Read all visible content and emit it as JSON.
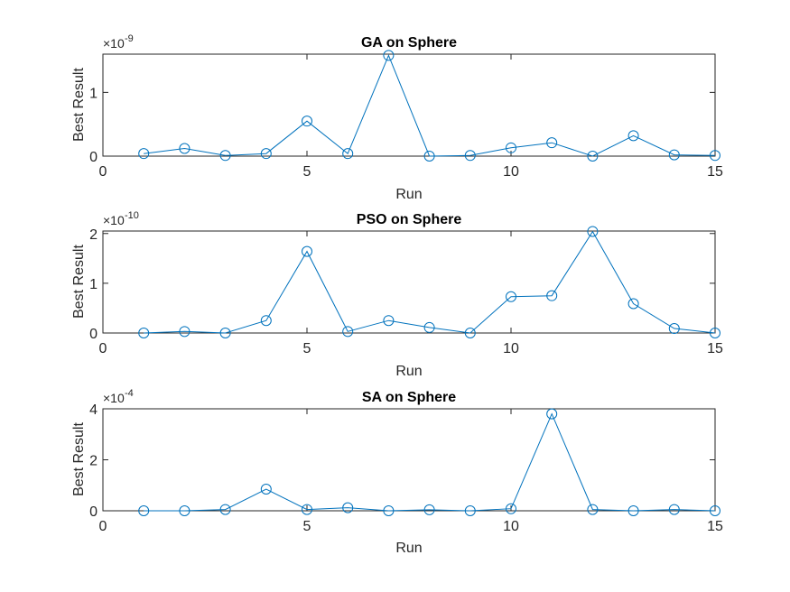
{
  "chart_data": [
    {
      "type": "line",
      "title": "GA on Sphere",
      "xlabel": "Run",
      "ylabel": "Best Result",
      "exponent": "-9",
      "xlim": [
        0,
        15
      ],
      "ylim": [
        0,
        1.6
      ],
      "xticks": [
        "0",
        "5",
        "10",
        "15"
      ],
      "yticks": [
        "0",
        "1"
      ],
      "yticks_values": [
        0,
        1
      ],
      "grid": false,
      "x": [
        1,
        2,
        3,
        4,
        5,
        6,
        7,
        8,
        9,
        10,
        11,
        12,
        13,
        14,
        15
      ],
      "values": [
        0.04,
        0.12,
        0.01,
        0.04,
        0.55,
        0.04,
        1.58,
        0.0,
        0.01,
        0.13,
        0.21,
        0.0,
        0.32,
        0.02,
        0.01
      ]
    },
    {
      "type": "line",
      "title": "PSO on Sphere",
      "xlabel": "Run",
      "ylabel": "Best Result",
      "exponent": "-10",
      "xlim": [
        0,
        15
      ],
      "ylim": [
        0,
        2.05
      ],
      "xticks": [
        "0",
        "5",
        "10",
        "15"
      ],
      "yticks": [
        "0",
        "1",
        "2"
      ],
      "yticks_values": [
        0,
        1,
        2
      ],
      "grid": false,
      "x": [
        1,
        2,
        3,
        4,
        5,
        6,
        7,
        8,
        9,
        10,
        11,
        12,
        13,
        14,
        15
      ],
      "values": [
        0.0,
        0.03,
        0.0,
        0.25,
        1.64,
        0.03,
        0.25,
        0.11,
        0.0,
        0.73,
        0.75,
        2.04,
        0.59,
        0.09,
        0.0
      ]
    },
    {
      "type": "line",
      "title": "SA on Sphere",
      "xlabel": "Run",
      "ylabel": "Best Result",
      "exponent": "-4",
      "xlim": [
        0,
        15
      ],
      "ylim": [
        0,
        4
      ],
      "xticks": [
        "0",
        "5",
        "10",
        "15"
      ],
      "yticks": [
        "0",
        "2",
        "4"
      ],
      "yticks_values": [
        0,
        2,
        4
      ],
      "grid": false,
      "x": [
        1,
        2,
        3,
        4,
        5,
        6,
        7,
        8,
        9,
        10,
        11,
        12,
        13,
        14,
        15
      ],
      "values": [
        0.0,
        0.0,
        0.05,
        0.85,
        0.05,
        0.12,
        0.0,
        0.04,
        0.0,
        0.08,
        3.8,
        0.05,
        0.0,
        0.05,
        0.0
      ]
    }
  ],
  "style": {
    "line_color": "#0072BD",
    "axis_color": "#262626",
    "text_color": "#262626"
  }
}
